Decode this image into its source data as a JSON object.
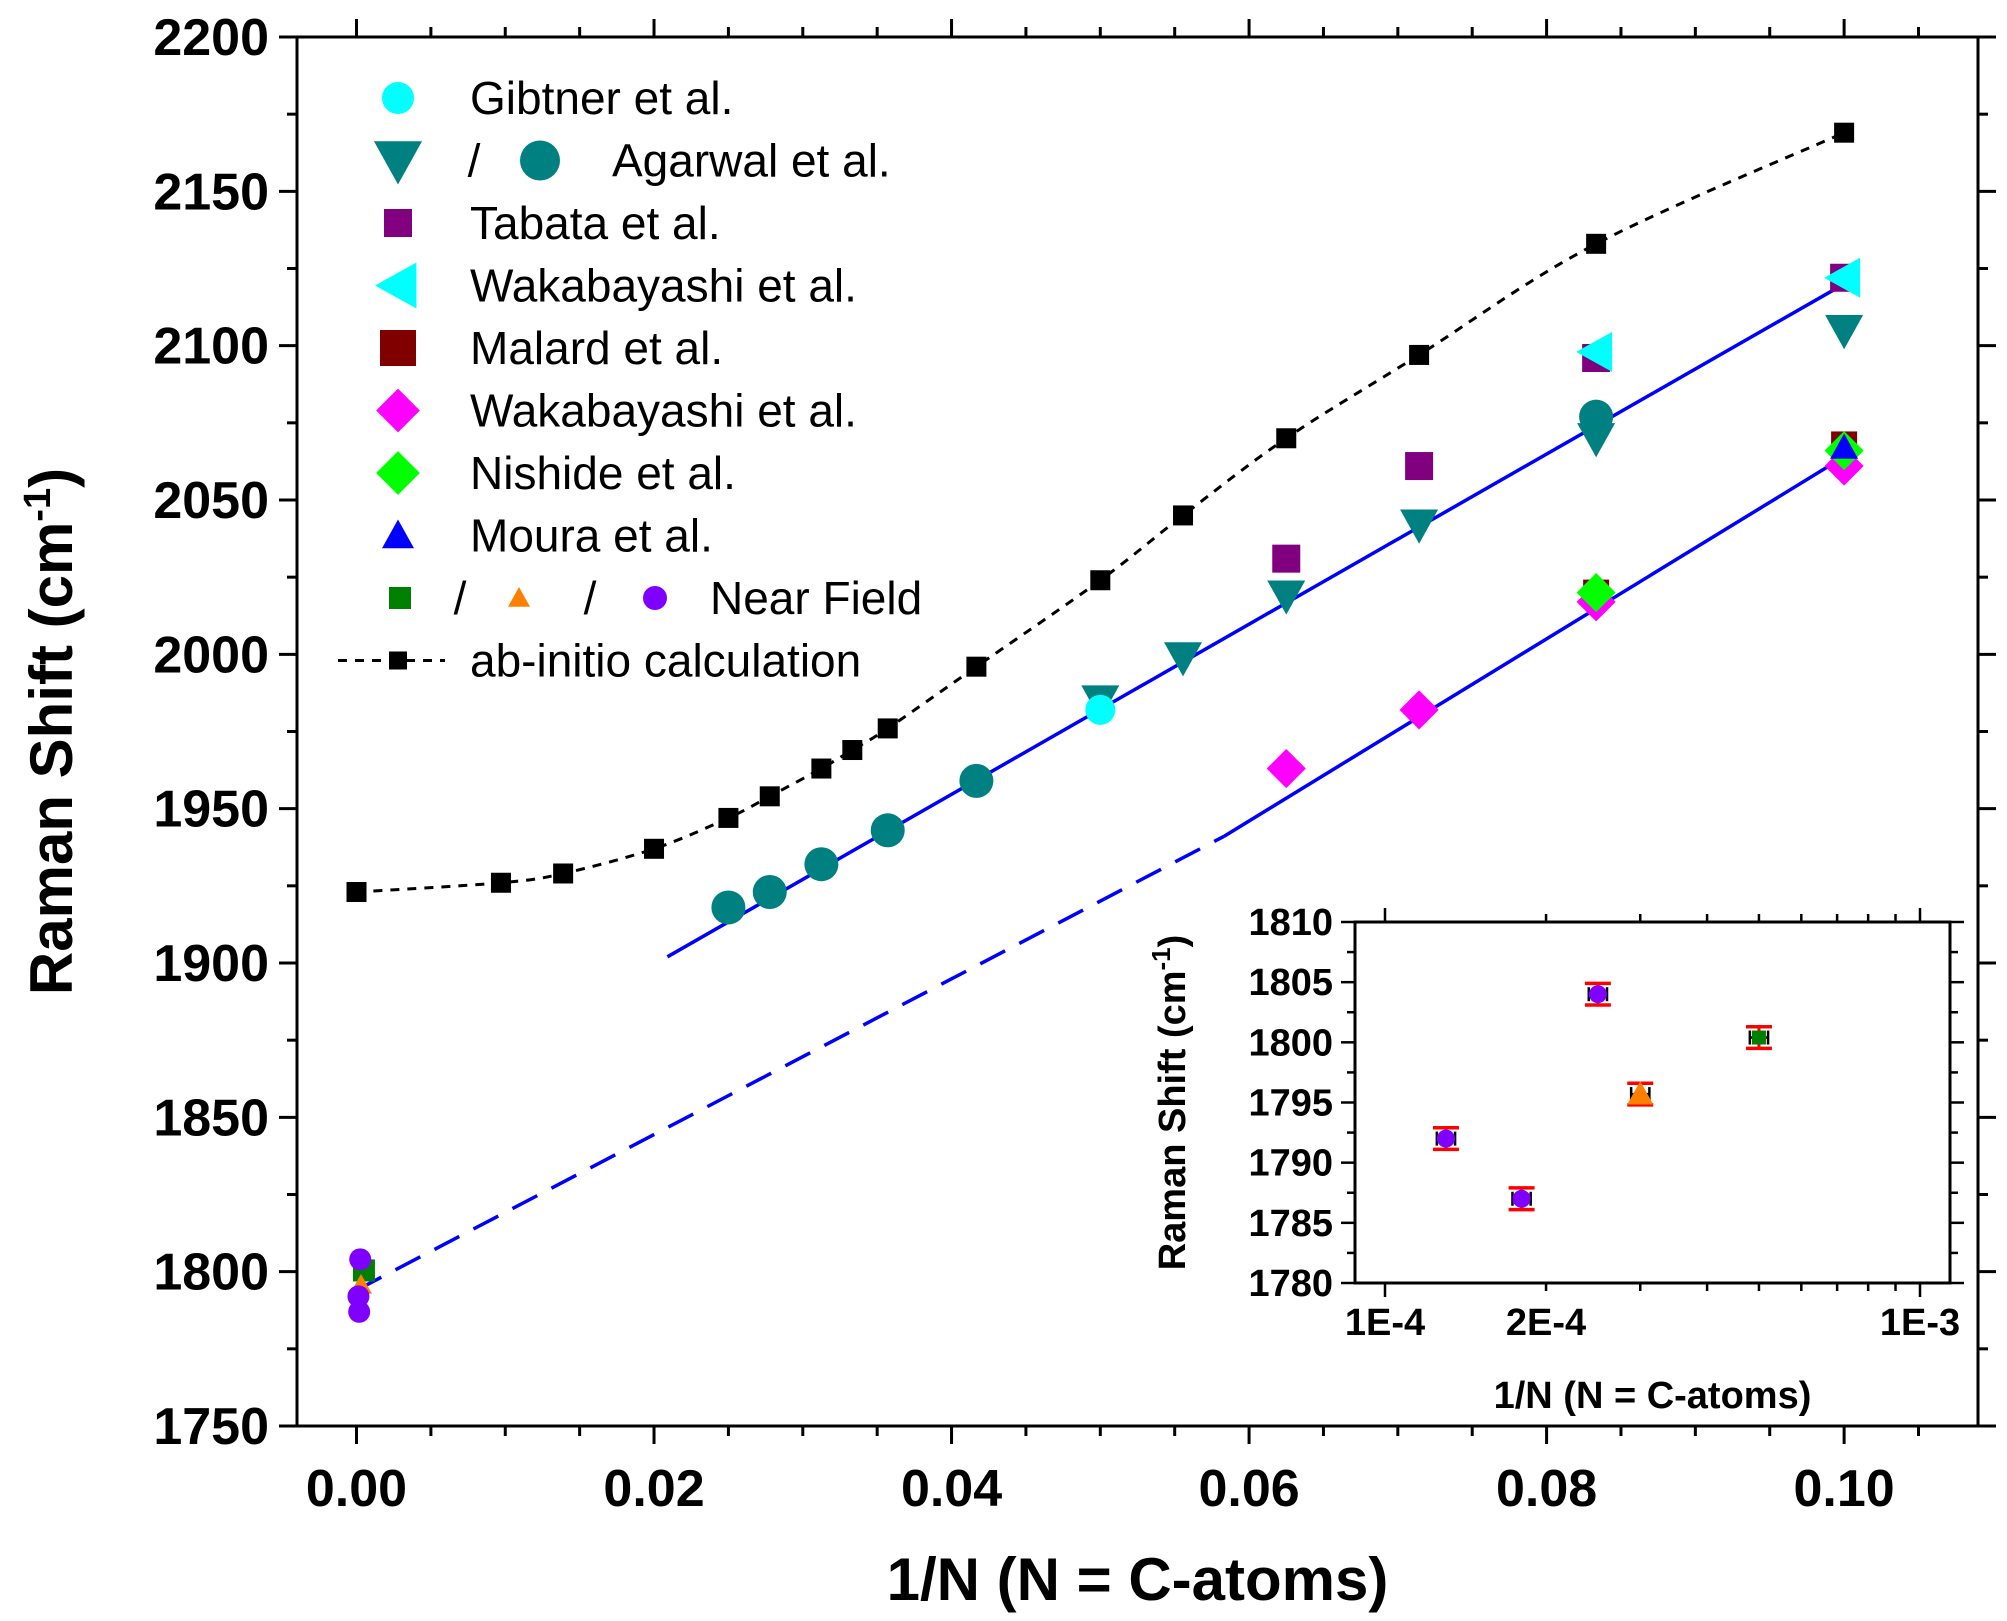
{
  "chart_data": [
    {
      "type": "scatter",
      "title": "",
      "xlabel": "1/N (N = C-atoms)",
      "ylabel": "Raman Shift (cm",
      "ylabel_sup": "-1",
      "ylabel_close": ")",
      "xlim": [
        -0.004,
        0.109
      ],
      "ylim": [
        1750,
        2200
      ],
      "xticks": [
        "0.00",
        "0.02",
        "0.04",
        "0.06",
        "0.08",
        "0.10"
      ],
      "xtick_values": [
        0,
        0.02,
        0.04,
        0.06,
        0.08,
        0.1
      ],
      "yticks": [
        "1750",
        "1800",
        "1850",
        "1900",
        "1950",
        "2000",
        "2050",
        "2100",
        "2150",
        "2200"
      ],
      "ytick_values": [
        1750,
        1800,
        1850,
        1900,
        1950,
        2000,
        2050,
        2100,
        2150,
        2200
      ],
      "legend_position": "top-left",
      "legend": [
        {
          "label": "Gibtner et al.",
          "markers": [
            "circle-cyan"
          ]
        },
        {
          "label": "Agarwal et al.",
          "markers": [
            "triangle-down-teal",
            "circle-teal"
          ],
          "separator": "/"
        },
        {
          "label": "Tabata et al.",
          "markers": [
            "square-purple"
          ]
        },
        {
          "label": "Wakabayashi et al.",
          "markers": [
            "triangle-left-cyan"
          ]
        },
        {
          "label": "Malard et al.",
          "markers": [
            "square-darkred"
          ]
        },
        {
          "label": "Wakabayashi et al.",
          "markers": [
            "diamond-magenta"
          ]
        },
        {
          "label": "Nishide et al.",
          "markers": [
            "diamond-green"
          ]
        },
        {
          "label": "Moura et al.",
          "markers": [
            "triangle-up-blue"
          ]
        },
        {
          "label": "Near Field",
          "markers": [
            "square-green-small",
            "triangle-up-orange-small",
            "circle-violet-small"
          ],
          "separator": "/"
        },
        {
          "label": "ab-initio calculation",
          "markers": [
            "line-dashed-square-black"
          ]
        }
      ],
      "colors": {
        "gibtner": "#00ffff",
        "agarwal": "#008080",
        "tabata": "#800080",
        "wakabayashi_left": "#00ffff",
        "malard": "#800000",
        "wakabayashi_diamond": "#ff00ff",
        "nishide": "#00ff00",
        "moura": "#0000ff",
        "nf_square": "#008000",
        "nf_triangle": "#ff8000",
        "nf_circle": "#8000ff",
        "abinitio": "#000000",
        "fit": "#0000ff"
      },
      "series": [
        {
          "name": "ab-initio calculation",
          "marker": "square",
          "color": "#000000",
          "line": "dashed",
          "x": [
            0,
            0.00971,
            0.01389,
            0.02,
            0.025,
            0.02778,
            0.03125,
            0.03333,
            0.03571,
            0.04167,
            0.05,
            0.05556,
            0.0625,
            0.07143,
            0.08333,
            0.1
          ],
          "y": [
            1923,
            1926,
            1929,
            1937,
            1947,
            1954,
            1963,
            1969,
            1976,
            1996,
            2024,
            2045,
            2070,
            2097,
            2133,
            2169
          ]
        },
        {
          "name": "Agarwal et al.",
          "marker": "circle",
          "color": "#008080",
          "x": [
            0.025,
            0.02778,
            0.03125,
            0.03571,
            0.04167,
            0.08333
          ],
          "y": [
            1918,
            1923,
            1932,
            1943,
            1959,
            2077
          ]
        },
        {
          "name": "Agarwal et al.",
          "marker": "triangle-down",
          "color": "#008080",
          "x": [
            0.05,
            0.05556,
            0.0625,
            0.07143,
            0.08333,
            0.1
          ],
          "y": [
            1985,
            1999,
            2019,
            2042,
            2070,
            2105
          ]
        },
        {
          "name": "Gibtner et al.",
          "marker": "circle",
          "color": "#00ffff",
          "x": [
            0.05
          ],
          "y": [
            1982
          ]
        },
        {
          "name": "Tabata et al.",
          "marker": "square",
          "color": "#800080",
          "x": [
            0.0625,
            0.07143,
            0.08333,
            0.1
          ],
          "y": [
            2031,
            2061,
            2096,
            2122
          ]
        },
        {
          "name": "Wakabayashi et al.",
          "marker": "triangle-left",
          "color": "#00ffff",
          "x": [
            0.08333,
            0.1
          ],
          "y": [
            2098,
            2122
          ]
        },
        {
          "name": "Malard et al.",
          "marker": "square",
          "color": "#800000",
          "x": [
            0.08333,
            0.1
          ],
          "y": [
            2020,
            2068
          ]
        },
        {
          "name": "Wakabayashi et al.",
          "marker": "diamond",
          "color": "#ff00ff",
          "x": [
            0.0625,
            0.07143,
            0.08333,
            0.1
          ],
          "y": [
            1963,
            1982,
            2017,
            2061
          ]
        },
        {
          "name": "Nishide et al.",
          "marker": "diamond",
          "color": "#00ff00",
          "x": [
            0.08333,
            0.1
          ],
          "y": [
            2020,
            2066
          ]
        },
        {
          "name": "Moura et al.",
          "marker": "triangle-up",
          "color": "#0000ff",
          "x": [
            0.1
          ],
          "y": [
            2067
          ]
        },
        {
          "name": "Near Field",
          "marker": "square",
          "color": "#008000",
          "x": [
            0.0005
          ],
          "y": [
            1800.4
          ]
        },
        {
          "name": "Near Field",
          "marker": "triangle-up",
          "color": "#ff8000",
          "x": [
            0.0003
          ],
          "y": [
            1795.7
          ]
        },
        {
          "name": "Near Field",
          "marker": "circle",
          "color": "#8000ff",
          "x": [
            0.00025,
            0.00018,
            0.00013
          ],
          "y": [
            1804,
            1787,
            1792
          ]
        }
      ],
      "fits": [
        {
          "style": "solid",
          "color": "#0000ff",
          "x": [
            0.0209,
            0.1
          ],
          "y": [
            1902,
            2120
          ]
        },
        {
          "style": "dashed",
          "color": "#0000ff",
          "x": [
            0,
            0.0583
          ],
          "y": [
            1794,
            1941
          ]
        },
        {
          "style": "solid",
          "color": "#0000ff",
          "x": [
            0.0583,
            0.1
          ],
          "y": [
            1941,
            2064
          ]
        }
      ]
    },
    {
      "type": "scatter",
      "title": "",
      "xlabel": "1/N (N = C-atoms)",
      "ylabel": "Raman Shift (cm",
      "ylabel_sup": "-1",
      "ylabel_close": ")",
      "xscale": "log",
      "xlim": [
        0.0001,
        0.001
      ],
      "ylim": [
        1780,
        1810
      ],
      "xticks": [
        "1E-4",
        "2E-4",
        "1E-3"
      ],
      "xtick_values": [
        0.0001,
        0.0002,
        0.001
      ],
      "yticks": [
        "1780",
        "1785",
        "1790",
        "1795",
        "1800",
        "1805",
        "1810"
      ],
      "ytick_values": [
        1780,
        1785,
        1790,
        1795,
        1800,
        1805,
        1810
      ],
      "series": [
        {
          "name": "Near Field",
          "marker": "circle",
          "color": "#8000ff",
          "x": [
            0.00013,
            0.00018,
            0.00025
          ],
          "y": [
            1792,
            1787,
            1804
          ]
        },
        {
          "name": "Near Field",
          "marker": "triangle-up",
          "color": "#ff8000",
          "x": [
            0.0003
          ],
          "y": [
            1795.7
          ]
        },
        {
          "name": "Near Field",
          "marker": "square",
          "color": "#008000",
          "x": [
            0.0005
          ],
          "y": [
            1800.4
          ]
        }
      ],
      "error_bars": {
        "y_color": "#ff0000",
        "x_color": "#000000",
        "y_err": 0.9,
        "x_err_frac": 0.04
      }
    }
  ]
}
